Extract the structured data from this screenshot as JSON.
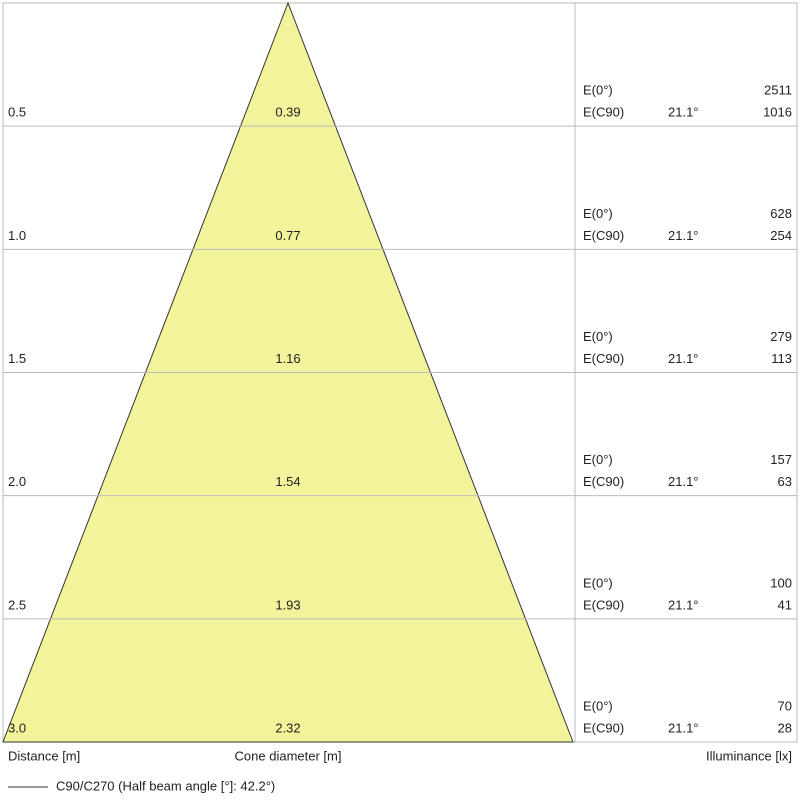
{
  "rows": [
    {
      "distance": "0.5",
      "diameter": "0.39",
      "e0_label": "E(0°)",
      "e0": "2511",
      "ec90_label": "E(C90)",
      "angle": "21.1°",
      "ec90": "1016"
    },
    {
      "distance": "1.0",
      "diameter": "0.77",
      "e0_label": "E(0°)",
      "e0": "628",
      "ec90_label": "E(C90)",
      "angle": "21.1°",
      "ec90": "254"
    },
    {
      "distance": "1.5",
      "diameter": "1.16",
      "e0_label": "E(0°)",
      "e0": "279",
      "ec90_label": "E(C90)",
      "angle": "21.1°",
      "ec90": "113"
    },
    {
      "distance": "2.0",
      "diameter": "1.54",
      "e0_label": "E(0°)",
      "e0": "157",
      "ec90_label": "E(C90)",
      "angle": "21.1°",
      "ec90": "63"
    },
    {
      "distance": "2.5",
      "diameter": "1.93",
      "e0_label": "E(0°)",
      "e0": "100",
      "ec90_label": "E(C90)",
      "angle": "21.1°",
      "ec90": "41"
    },
    {
      "distance": "3.0",
      "diameter": "2.32",
      "e0_label": "E(0°)",
      "e0": "70",
      "ec90_label": "E(C90)",
      "angle": "21.1°",
      "ec90": "28"
    }
  ],
  "footer": {
    "distance_label": "Distance [m]",
    "diameter_label": "Cone diameter [m]",
    "illuminance_label": "Illuminance [lx]"
  },
  "legend": "C90/C270 (Half beam angle [°]: 42.2°)"
}
